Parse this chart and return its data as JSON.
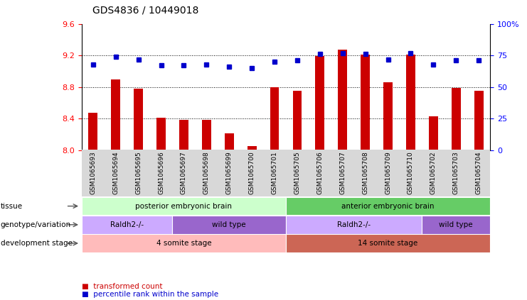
{
  "title": "GDS4836 / 10449018",
  "samples": [
    "GSM1065693",
    "GSM1065694",
    "GSM1065695",
    "GSM1065696",
    "GSM1065697",
    "GSM1065698",
    "GSM1065699",
    "GSM1065700",
    "GSM1065701",
    "GSM1065705",
    "GSM1065706",
    "GSM1065707",
    "GSM1065708",
    "GSM1065709",
    "GSM1065710",
    "GSM1065702",
    "GSM1065703",
    "GSM1065704"
  ],
  "transformed_count": [
    8.47,
    8.9,
    8.78,
    8.41,
    8.38,
    8.38,
    8.21,
    8.05,
    8.8,
    8.75,
    9.19,
    9.27,
    9.21,
    8.86,
    9.21,
    8.43,
    8.79,
    8.75
  ],
  "percentile_rank": [
    68,
    74,
    72,
    67,
    67,
    68,
    66,
    65,
    70,
    71,
    76,
    77,
    76,
    72,
    77,
    68,
    71,
    71
  ],
  "ylim_left": [
    8.0,
    9.6
  ],
  "ylim_right": [
    0,
    100
  ],
  "yticks_left": [
    8.0,
    8.4,
    8.8,
    9.2,
    9.6
  ],
  "yticks_right": [
    0,
    25,
    50,
    75,
    100
  ],
  "bar_color": "#cc0000",
  "dot_color": "#0000cc",
  "background_color": "#ffffff",
  "tissue_row": {
    "label": "tissue",
    "groups": [
      {
        "text": "posterior embryonic brain",
        "start": 0,
        "end": 9,
        "color": "#ccffcc"
      },
      {
        "text": "anterior embryonic brain",
        "start": 9,
        "end": 18,
        "color": "#66cc66"
      }
    ]
  },
  "genotype_row": {
    "label": "genotype/variation",
    "groups": [
      {
        "text": "Raldh2-/-",
        "start": 0,
        "end": 4,
        "color": "#ccaaff"
      },
      {
        "text": "wild type",
        "start": 4,
        "end": 9,
        "color": "#9966cc"
      },
      {
        "text": "Raldh2-/-",
        "start": 9,
        "end": 15,
        "color": "#ccaaff"
      },
      {
        "text": "wild type",
        "start": 15,
        "end": 18,
        "color": "#9966cc"
      }
    ]
  },
  "development_row": {
    "label": "development stage",
    "groups": [
      {
        "text": "4 somite stage",
        "start": 0,
        "end": 9,
        "color": "#ffbbbb"
      },
      {
        "text": "14 somite stage",
        "start": 9,
        "end": 18,
        "color": "#cc6655"
      }
    ]
  },
  "legend": [
    {
      "label": "transformed count",
      "color": "#cc0000"
    },
    {
      "label": "percentile rank within the sample",
      "color": "#0000cc"
    }
  ],
  "grid_yticks": [
    8.4,
    8.8,
    9.2
  ]
}
